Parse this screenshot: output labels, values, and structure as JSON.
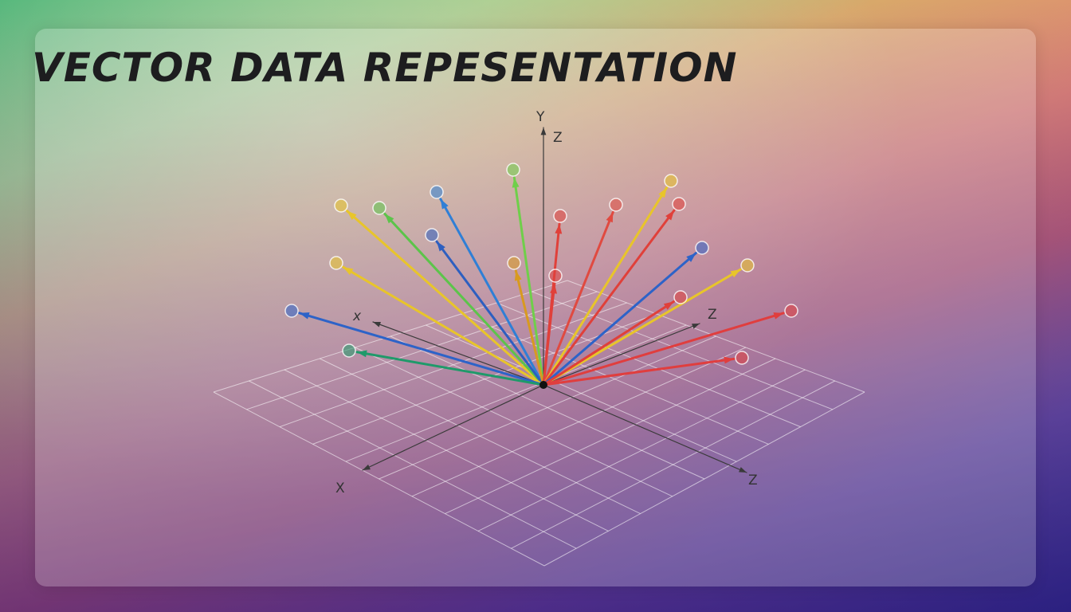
{
  "header": {
    "title": "VECTOR DATA REPESENTATION"
  },
  "axes": {
    "y_top": "Y",
    "z_top": "Z",
    "x_back": "x",
    "z_back": "Z",
    "x_front": "X",
    "z_front": "Z"
  }
}
